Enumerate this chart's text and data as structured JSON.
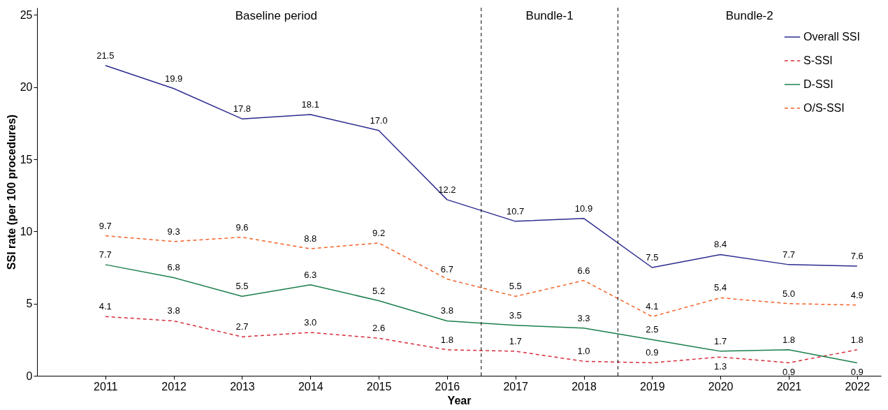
{
  "chart_data": {
    "type": "line",
    "xlabel": "Year",
    "ylabel": "SSI rate (per 100 procedures)",
    "x": [
      2011,
      2012,
      2013,
      2014,
      2015,
      2016,
      2017,
      2018,
      2019,
      2020,
      2021,
      2022
    ],
    "xlim": [
      2010,
      2022.35
    ],
    "xticks": [
      2011,
      2012,
      2013,
      2014,
      2015,
      2016,
      2017,
      2018,
      2019,
      2020,
      2021,
      2022
    ],
    "ylim": [
      0,
      25.5
    ],
    "yticks": [
      0,
      5,
      10,
      15,
      20,
      25
    ],
    "series": [
      {
        "name": "Overall SSI",
        "color": "#2b2b8f",
        "line_style": "solid",
        "values": [
          21.5,
          19.9,
          17.8,
          18.1,
          17.0,
          12.2,
          10.7,
          10.9,
          7.5,
          8.4,
          7.7,
          7.6
        ],
        "value_labels": [
          "21.5",
          "19.9",
          "17.8",
          "18.1",
          "17.0",
          "12.2",
          "10.7",
          "10.9",
          "7.5",
          "8.4",
          "7.7",
          "7.6"
        ]
      },
      {
        "name": "S-SSI",
        "color": "#d62e3c",
        "line_style": "dashed",
        "values": [
          4.1,
          3.8,
          2.7,
          3.0,
          2.6,
          1.8,
          1.7,
          1.0,
          0.9,
          1.3,
          0.9,
          1.8
        ],
        "value_labels": [
          "4.1",
          "3.8",
          "2.7",
          "3.0",
          "2.6",
          "1.8",
          "1.7",
          "1.0",
          "0.9",
          "1.3",
          "0.9",
          "1.8"
        ]
      },
      {
        "name": "D-SSI",
        "color": "#1a7f4a",
        "line_style": "solid",
        "values": [
          7.7,
          6.8,
          5.5,
          6.3,
          5.2,
          3.8,
          3.5,
          3.3,
          2.5,
          1.7,
          1.8,
          0.9
        ],
        "value_labels": [
          "7.7",
          "6.8",
          "5.5",
          "6.3",
          "5.2",
          "3.8",
          "3.5",
          "3.3",
          "2.5",
          "1.7",
          "1.8",
          "0.9"
        ]
      },
      {
        "name": "O/S-SSI",
        "color": "#f4632a",
        "line_style": "dashed",
        "values": [
          9.7,
          9.3,
          9.6,
          8.8,
          9.2,
          6.7,
          5.5,
          6.6,
          4.1,
          5.4,
          5.0,
          4.9
        ],
        "value_labels": [
          "9.7",
          "9.3",
          "9.6",
          "8.8",
          "9.2",
          "6.7",
          "5.5",
          "6.6",
          "4.1",
          "5.4",
          "5.0",
          "4.9"
        ]
      }
    ],
    "ref_lines": [
      {
        "axis": "x",
        "value": 2016.5,
        "line_style": "dashed",
        "color": "#000000"
      },
      {
        "axis": "x",
        "value": 2018.5,
        "line_style": "dashed",
        "color": "#000000"
      }
    ],
    "annotations": [
      "Baseline period",
      "Bundle-1",
      "Bundle-2"
    ],
    "grid": false,
    "legend": "top right",
    "marker": "none"
  }
}
